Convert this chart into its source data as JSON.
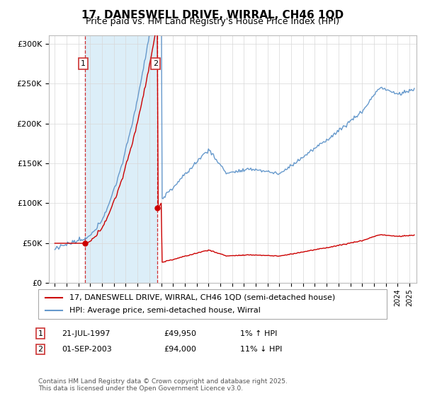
{
  "title": "17, DANESWELL DRIVE, WIRRAL, CH46 1QD",
  "subtitle": "Price paid vs. HM Land Registry's House Price Index (HPI)",
  "ylim": [
    0,
    310000
  ],
  "yticks": [
    0,
    50000,
    100000,
    150000,
    200000,
    250000,
    300000
  ],
  "ytick_labels": [
    "£0",
    "£50K",
    "£100K",
    "£150K",
    "£200K",
    "£250K",
    "£300K"
  ],
  "purchase1_year": 1997.55,
  "purchase1_price": 49950,
  "purchase2_year": 2003.67,
  "purchase2_price": 94000,
  "line_color_red": "#cc0000",
  "line_color_blue": "#6699cc",
  "shade_color": "#dceef8",
  "vline_color": "#cc0000",
  "background_color": "#ffffff",
  "legend_line1": "17, DANESWELL DRIVE, WIRRAL, CH46 1QD (semi-detached house)",
  "legend_line2": "HPI: Average price, semi-detached house, Wirral",
  "footer": "Contains HM Land Registry data © Crown copyright and database right 2025.\nThis data is licensed under the Open Government Licence v3.0.",
  "purchase1_text": "21-JUL-1997",
  "purchase1_amount": "£49,950",
  "purchase1_hpi": "1% ↑ HPI",
  "purchase2_text": "01-SEP-2003",
  "purchase2_amount": "£94,000",
  "purchase2_hpi": "11% ↓ HPI"
}
